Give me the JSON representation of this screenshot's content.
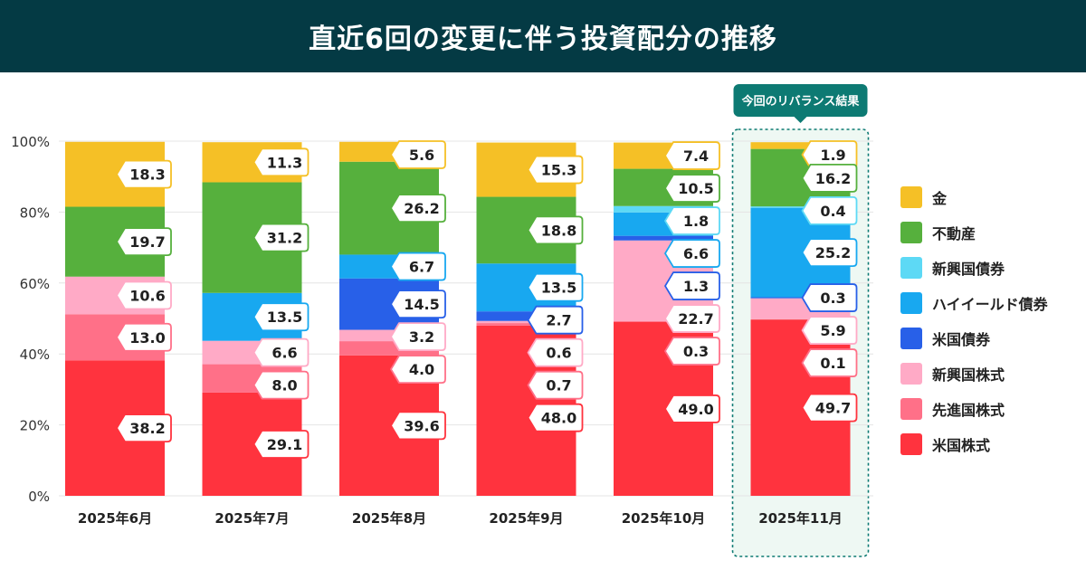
{
  "title": "直近6回の変更に伴う投資配分の推移",
  "highlight_label": "今回のリバランス結果",
  "colors": {
    "gold": "#f5c026",
    "real_estate": "#56b03d",
    "em_bonds": "#5dd9f5",
    "high_yield_bonds": "#18a8f0",
    "us_bonds": "#2860e8",
    "em_stocks": "#ffaac6",
    "dev_stocks": "#ff7088",
    "us_stocks": "#ff333e",
    "highlight": "#0d7a73"
  },
  "chart_data": {
    "type": "bar",
    "stacked": true,
    "title": "直近6回の変更に伴う投資配分の推移",
    "categories": [
      "2025年6月",
      "2025年7月",
      "2025年8月",
      "2025年9月",
      "2025年10月",
      "2025年11月"
    ],
    "ylim": [
      0,
      100
    ],
    "yticks": [
      "0%",
      "20%",
      "40%",
      "60%",
      "80%",
      "100%"
    ],
    "ytick_values": [
      0,
      20,
      40,
      60,
      80,
      100
    ],
    "grid": true,
    "legend_position": "right",
    "highlighted_category": "2025年11月",
    "series": [
      {
        "key": "us_stocks",
        "name": "米国株式",
        "values": [
          38.2,
          29.1,
          39.6,
          48.0,
          49.0,
          49.7
        ]
      },
      {
        "key": "dev_stocks",
        "name": "先進国株式",
        "values": [
          13.0,
          8.0,
          4.0,
          0.7,
          0.3,
          0.1
        ]
      },
      {
        "key": "em_stocks",
        "name": "新興国株式",
        "values": [
          10.6,
          6.6,
          3.2,
          0.6,
          22.7,
          5.9
        ]
      },
      {
        "key": "us_bonds",
        "name": "米国債券",
        "values": [
          0,
          0,
          14.5,
          2.7,
          1.3,
          0.3
        ]
      },
      {
        "key": "high_yield_bonds",
        "name": "ハイイールド債券",
        "values": [
          0,
          13.5,
          6.7,
          13.5,
          6.6,
          25.2
        ]
      },
      {
        "key": "em_bonds",
        "name": "新興国債券",
        "values": [
          0,
          0,
          0,
          0,
          1.8,
          0.4
        ]
      },
      {
        "key": "real_estate",
        "name": "不動産",
        "values": [
          19.7,
          31.2,
          26.2,
          18.8,
          10.5,
          16.2
        ]
      },
      {
        "key": "gold",
        "name": "金",
        "values": [
          18.3,
          11.3,
          5.6,
          15.3,
          7.4,
          1.9
        ]
      }
    ],
    "legend_order": [
      "gold",
      "real_estate",
      "em_bonds",
      "high_yield_bonds",
      "us_bonds",
      "em_stocks",
      "dev_stocks",
      "us_stocks"
    ]
  }
}
